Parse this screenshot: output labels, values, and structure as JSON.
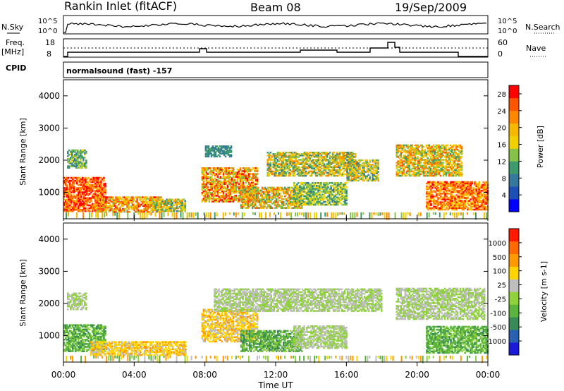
{
  "header": {
    "station": "Rankin Inlet (fitACF)",
    "beam": "Beam 08",
    "date": "19/Sep/2009"
  },
  "aux_panel": {
    "nsky_label": "N.Sky",
    "nsearch_label": "N.Search",
    "nsky_ticks": [
      "10^5",
      "10^0"
    ],
    "nsearch_ticks": [
      "10^5",
      "10^0"
    ],
    "freq_label": "Freq.",
    "freq_unit": "[MHz]",
    "freq_ticks": [
      "18",
      "8"
    ],
    "nave_label": "Nave",
    "nave_ticks": [
      "60",
      "0"
    ],
    "cpid_label": "CPID",
    "cpid_text": "normalsound (fast) -157"
  },
  "colors": {
    "power": [
      "#0000ff",
      "#1e4fb4",
      "#35789c",
      "#3e9a6a",
      "#86c24a",
      "#f0d000",
      "#f4b800",
      "#ff8800",
      "#ff5500",
      "#ff0000"
    ],
    "velocity": [
      "#1a1ad8",
      "#2a60b0",
      "#3a8a58",
      "#5bb33e",
      "#8fd23a",
      "#bebebe",
      "#ffd400",
      "#ff9a00",
      "#ff6a00",
      "#ff1a00"
    ]
  },
  "chart_data": [
    {
      "type": "heatmap",
      "title": "Power",
      "ylabel": "Slant Range [km]",
      "xlabel": "Time UT",
      "x_ticks": [
        "00:00",
        "04:00",
        "08:00",
        "12:00",
        "16:00",
        "20:00",
        "00:00"
      ],
      "y_ticks": [
        "1000",
        "2000",
        "3000",
        "4000"
      ],
      "ylim": [
        180,
        4500
      ],
      "colorbar": {
        "label": "Power [dB]",
        "ticks": [
          "4",
          "8",
          "12",
          "16",
          "20",
          "24",
          "28"
        ],
        "range": [
          0,
          30
        ]
      },
      "regions": [
        {
          "t0": 0.0,
          "t1": 2.4,
          "r0": 400,
          "r1": 1450,
          "v0": 20,
          "v1": 30
        },
        {
          "t0": 0.2,
          "t1": 1.3,
          "r0": 1750,
          "r1": 2300,
          "v0": 8,
          "v1": 16
        },
        {
          "t0": 1.8,
          "t1": 5.5,
          "r0": 380,
          "r1": 850,
          "v0": 14,
          "v1": 28
        },
        {
          "t0": 5.0,
          "t1": 6.9,
          "r0": 400,
          "r1": 800,
          "v0": 8,
          "v1": 22
        },
        {
          "t0": 7.8,
          "t1": 11.0,
          "r0": 700,
          "r1": 1750,
          "v0": 12,
          "v1": 30
        },
        {
          "t0": 8.0,
          "t1": 9.5,
          "r0": 2100,
          "r1": 2450,
          "v0": 6,
          "v1": 12
        },
        {
          "t0": 10.0,
          "t1": 13.5,
          "r0": 500,
          "r1": 1150,
          "v0": 10,
          "v1": 26
        },
        {
          "t0": 11.5,
          "t1": 16.5,
          "r0": 1500,
          "r1": 2250,
          "v0": 8,
          "v1": 24
        },
        {
          "t0": 13.0,
          "t1": 16.0,
          "r0": 600,
          "r1": 1300,
          "v0": 8,
          "v1": 18
        },
        {
          "t0": 16.0,
          "t1": 17.8,
          "r0": 1350,
          "r1": 2000,
          "v0": 8,
          "v1": 22
        },
        {
          "t0": 18.8,
          "t1": 22.5,
          "r0": 1500,
          "r1": 2450,
          "v0": 10,
          "v1": 26
        },
        {
          "t0": 20.5,
          "t1": 24.0,
          "r0": 450,
          "r1": 1350,
          "v0": 16,
          "v1": 30
        }
      ]
    },
    {
      "type": "heatmap",
      "title": "Velocity",
      "ylabel": "Slant Range [km]",
      "xlabel": "Time UT",
      "x_ticks": [
        "00:00",
        "04:00",
        "08:00",
        "12:00",
        "16:00",
        "20:00",
        "00:00"
      ],
      "y_ticks": [
        "1000",
        "2000",
        "3000",
        "4000"
      ],
      "ylim": [
        180,
        4500
      ],
      "colorbar": {
        "label": "Velocity [m s-1]",
        "ticks": [
          "1000",
          "500",
          "100",
          "25",
          "-25",
          "-100",
          "-500",
          "-1000"
        ],
        "range": [
          -1000,
          1000
        ]
      },
      "regions": [
        {
          "t0": 0.0,
          "t1": 2.4,
          "r0": 500,
          "r1": 1350,
          "v0": -500,
          "v1": -100
        },
        {
          "t0": 0.2,
          "t1": 1.3,
          "r0": 1800,
          "r1": 2300,
          "v0": -25,
          "v1": 25
        },
        {
          "t0": 1.5,
          "t1": 6.9,
          "r0": 380,
          "r1": 800,
          "v0": 100,
          "v1": 500
        },
        {
          "t0": 7.8,
          "t1": 11.0,
          "r0": 800,
          "r1": 1800,
          "v0": 100,
          "v1": 500
        },
        {
          "t0": 8.5,
          "t1": 18.0,
          "r0": 1750,
          "r1": 2450,
          "v0": -25,
          "v1": 25
        },
        {
          "t0": 10.0,
          "t1": 13.5,
          "r0": 500,
          "r1": 1150,
          "v0": -500,
          "v1": -100
        },
        {
          "t0": 13.0,
          "t1": 16.0,
          "r0": 600,
          "r1": 1300,
          "v0": -25,
          "v1": 25
        },
        {
          "t0": 18.8,
          "t1": 23.8,
          "r0": 1500,
          "r1": 2450,
          "v0": -25,
          "v1": 25
        },
        {
          "t0": 20.5,
          "t1": 24.0,
          "r0": 450,
          "r1": 1300,
          "v0": -500,
          "v1": -100
        }
      ]
    }
  ]
}
